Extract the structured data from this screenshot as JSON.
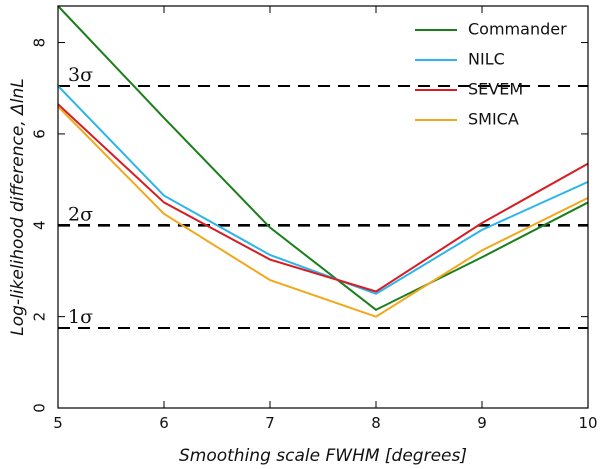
{
  "chart_data": {
    "type": "line",
    "xlabel": "Smoothing scale FWHM [degrees]",
    "ylabel": "Log-likelihood difference, ΔlnL",
    "xlim": [
      5,
      10
    ],
    "ylim": [
      0,
      8.8
    ],
    "xticks": [
      5,
      6,
      7,
      8,
      9,
      10
    ],
    "yticks": [
      0,
      2,
      4,
      6,
      8
    ],
    "x": [
      5,
      6,
      7,
      8,
      9,
      10
    ],
    "series": [
      {
        "name": "Commander",
        "color": "#1a7f1a",
        "values": [
          8.8,
          6.35,
          3.95,
          2.15,
          3.3,
          4.5
        ]
      },
      {
        "name": "NILC",
        "color": "#2bb5ea",
        "values": [
          7.05,
          4.65,
          3.35,
          2.5,
          3.9,
          4.95
        ]
      },
      {
        "name": "SEVEM",
        "color": "#d81c24",
        "values": [
          6.65,
          4.5,
          3.25,
          2.55,
          4.05,
          5.35
        ]
      },
      {
        "name": "SMICA",
        "color": "#f2a81c",
        "values": [
          6.6,
          4.25,
          2.8,
          2.0,
          3.45,
          4.6
        ]
      }
    ],
    "reference_lines": [
      {
        "label": "1σ",
        "y": 1.75
      },
      {
        "label": "2σ",
        "y": 4.0
      },
      {
        "label": "3σ",
        "y": 7.05
      }
    ],
    "legend_position": "top-right",
    "grid": false
  }
}
